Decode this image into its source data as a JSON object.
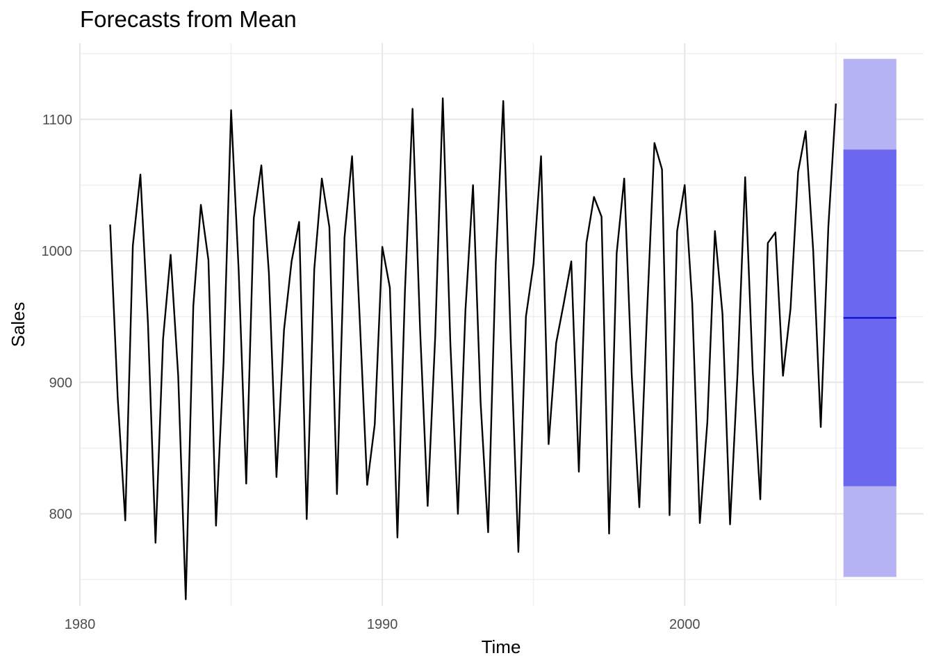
{
  "chart_data": {
    "type": "line",
    "title": "Forecasts from Mean",
    "xlabel": "Time",
    "ylabel": "Sales",
    "xlim": [
      1980,
      2007.9
    ],
    "ylim": [
      730,
      1158
    ],
    "x_ticks": [
      1980,
      1990,
      2000
    ],
    "x_tick_labels": [
      "1980",
      "1990",
      "2000"
    ],
    "y_ticks": [
      800,
      900,
      1000,
      1100
    ],
    "y_tick_labels": [
      "800",
      "900",
      "1000",
      "1100"
    ],
    "x_minor_ticks": [
      1985,
      1995,
      2005
    ],
    "y_minor_ticks": [
      750,
      850,
      950,
      1050,
      1150
    ],
    "grid": true,
    "series": [
      {
        "start": 1981,
        "frequency": 4,
        "color": "#000000",
        "values": [
          1020,
          888,
          795,
          1004,
          1058,
          945,
          778,
          933,
          997,
          905,
          735,
          958,
          1035,
          993,
          791,
          915,
          1107,
          985,
          823,
          1025,
          1065,
          983,
          828,
          940,
          992,
          1022,
          796,
          986,
          1055,
          1018,
          815,
          1010,
          1072,
          950,
          822,
          868,
          1003,
          972,
          782,
          970,
          1108,
          940,
          806,
          935,
          1116,
          930,
          800,
          955,
          1050,
          885,
          786,
          990,
          1114,
          930,
          771,
          950,
          990,
          1072,
          853,
          930,
          960,
          992,
          832,
          1006,
          1041,
          1026,
          785,
          998,
          1055,
          905,
          805,
          950,
          1082,
          1062,
          799,
          1015,
          1050,
          960,
          793,
          870,
          1015,
          952,
          792,
          908,
          1056,
          908,
          811,
          1006,
          1014,
          905,
          956,
          1060,
          1091,
          1000,
          866,
          1018,
          1112
        ]
      }
    ],
    "forecast": {
      "x_start": 2005.25,
      "x_end": 2007.0,
      "mean": 949,
      "interval_80": [
        821,
        1077
      ],
      "interval_95": [
        752,
        1146
      ],
      "mean_color": "#0000cc",
      "interval_80_color": "#6b67ee",
      "interval_95_color": "#b6b3f4"
    }
  }
}
